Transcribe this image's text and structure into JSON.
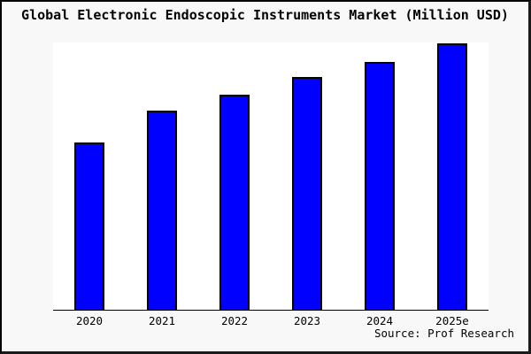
{
  "window": {
    "background": "#f8f8f8",
    "frame_color": "#000000"
  },
  "chart_data": {
    "type": "bar",
    "title": "Global Electronic Endoscopic Instruments Market (Million USD)",
    "categories": [
      "2020",
      "2021",
      "2022",
      "2023",
      "2024",
      "2025e"
    ],
    "values_relative_to_max_pct": [
      62.8,
      74.8,
      80.7,
      87.4,
      93.0,
      100
    ],
    "note": "No y-axis ticks, gridlines or data labels are shown; values are relative bar heights estimated from pixels (tallest bar = 100).",
    "xlabel": "",
    "ylabel": "",
    "y_axis_ticks": [],
    "grid": false,
    "legend": "none",
    "bar_color": "#0000ff",
    "bar_border_color": "#000000",
    "plot_background": "#ffffff",
    "source": "Source: Prof Research"
  }
}
